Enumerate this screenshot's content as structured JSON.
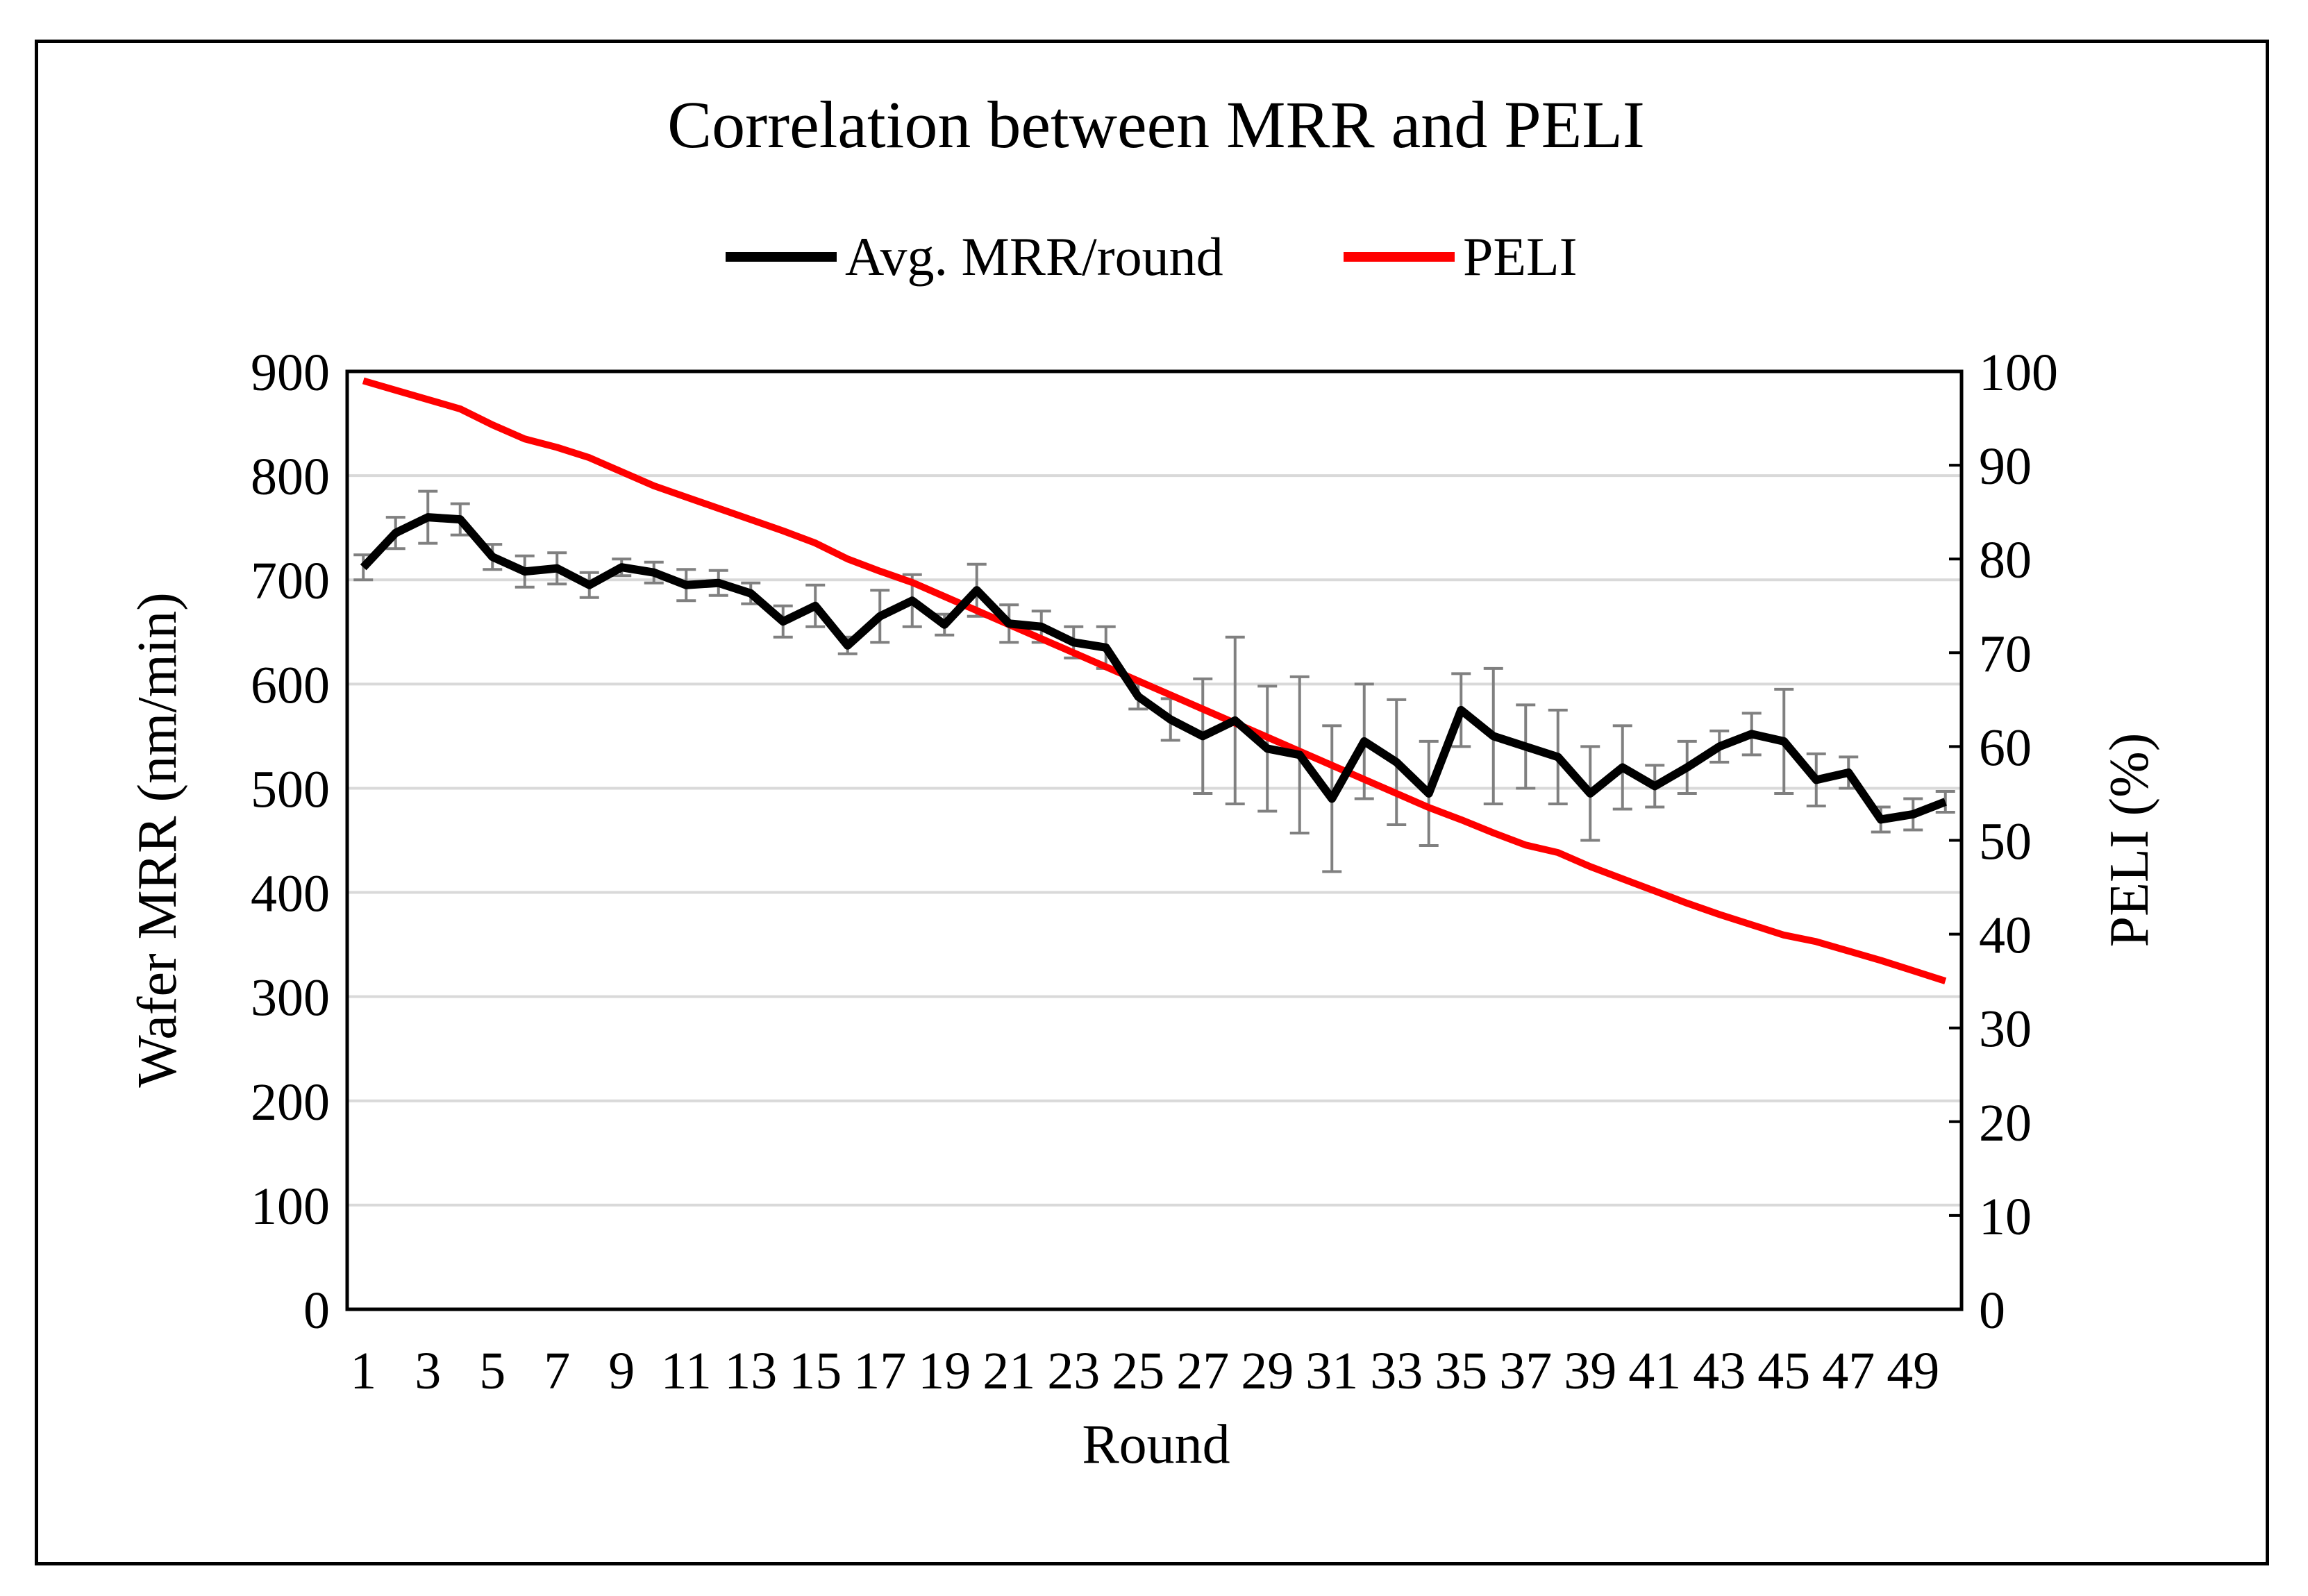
{
  "chart_data": {
    "type": "line",
    "title": "Correlation between MRR and PELI",
    "xlabel": "Round",
    "ylabel": "Wafer MRR (nm/min)",
    "y2label": "PELI (%)",
    "ylim": [
      0,
      900
    ],
    "y2lim": [
      0,
      100
    ],
    "yticks": [
      "0",
      "100",
      "200",
      "300",
      "400",
      "500",
      "600",
      "700",
      "800",
      "900"
    ],
    "y2ticks": [
      "0",
      "10",
      "20",
      "30",
      "40",
      "50",
      "60",
      "70",
      "80",
      "90",
      "100"
    ],
    "categories": [
      1,
      2,
      3,
      4,
      5,
      6,
      7,
      8,
      9,
      10,
      11,
      12,
      13,
      14,
      15,
      16,
      17,
      18,
      19,
      20,
      21,
      22,
      23,
      24,
      25,
      26,
      27,
      28,
      29,
      30,
      31,
      32,
      33,
      34,
      35,
      36,
      37,
      38,
      39,
      40,
      41,
      42,
      43,
      44,
      45,
      46,
      47,
      48,
      49,
      50
    ],
    "xtick_labels": [
      "1",
      "3",
      "5",
      "7",
      "9",
      "11",
      "13",
      "15",
      "17",
      "19",
      "21",
      "23",
      "25",
      "27",
      "29",
      "31",
      "33",
      "35",
      "37",
      "39",
      "41",
      "43",
      "45",
      "47",
      "49"
    ],
    "grid": true,
    "legend_position": "top-center",
    "series": [
      {
        "name": "Avg. MRR/round",
        "axis": "left",
        "color": "#000000",
        "values": [
          712,
          745,
          760,
          758,
          722,
          708,
          711,
          695,
          712,
          707,
          695,
          697,
          687,
          660,
          675,
          637,
          665,
          680,
          657,
          690,
          658,
          655,
          640,
          635,
          588,
          566,
          550,
          565,
          538,
          532,
          490,
          545,
          525,
          495,
          575,
          550,
          540,
          530,
          495,
          520,
          502,
          520,
          540,
          552,
          545,
          508,
          515,
          470,
          475,
          487
        ],
        "errors": [
          12,
          15,
          25,
          15,
          12,
          15,
          15,
          12,
          8,
          10,
          15,
          12,
          10,
          15,
          20,
          8,
          25,
          25,
          10,
          25,
          18,
          15,
          15,
          20,
          12,
          20,
          55,
          80,
          60,
          75,
          70,
          55,
          60,
          50,
          35,
          65,
          40,
          45,
          45,
          40,
          20,
          25,
          15,
          20,
          50,
          25,
          15,
          12,
          15,
          10
        ]
      },
      {
        "name": "PELI",
        "axis": "right",
        "color": "#ff0000",
        "values": [
          99,
          98,
          97,
          96,
          94.3,
          92.8,
          91.9,
          90.8,
          89.3,
          87.8,
          86.6,
          85.4,
          84.2,
          83.0,
          81.7,
          80.0,
          78.7,
          77.5,
          76.0,
          74.5,
          73.0,
          71.5,
          70.0,
          68.5,
          67.0,
          65.5,
          64.0,
          62.5,
          61.0,
          59.5,
          58.0,
          56.5,
          55.0,
          53.5,
          52.2,
          50.8,
          49.5,
          48.7,
          47.2,
          45.9,
          44.6,
          43.3,
          42.1,
          41.0,
          39.9,
          39.2,
          38.2,
          37.2,
          36.1,
          35.0
        ]
      }
    ]
  }
}
